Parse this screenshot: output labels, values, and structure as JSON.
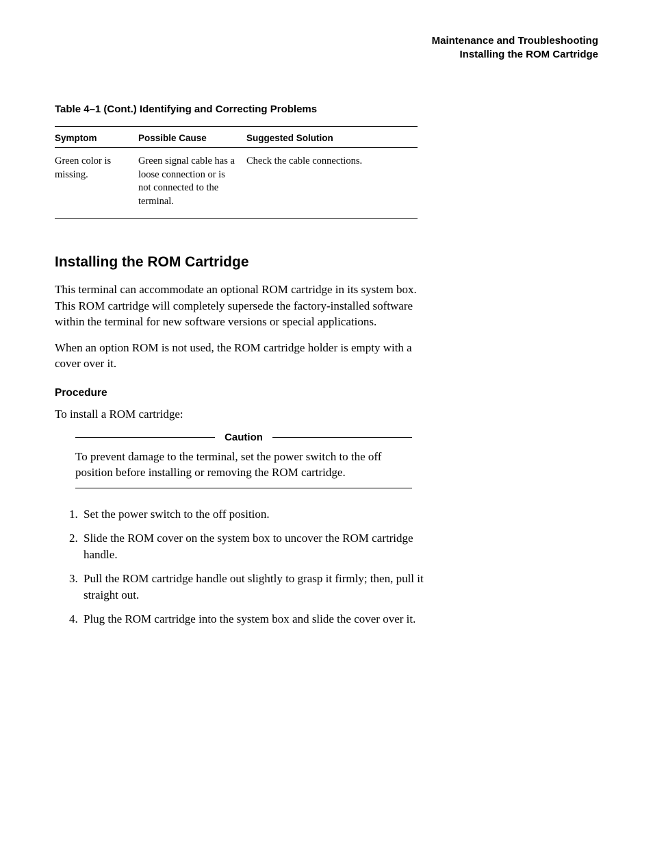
{
  "colors": {
    "text": "#000000",
    "background": "#ffffff",
    "rule": "#000000"
  },
  "running_head": {
    "title": "Maintenance and Troubleshooting",
    "sub": "Installing the ROM Cartridge"
  },
  "table": {
    "caption": "Table 4–1 (Cont.)  Identifying and Correcting Problems",
    "headers": [
      "Symptom",
      "Possible Cause",
      "Suggested Solution"
    ],
    "row": {
      "symptom": "Green color is missing.",
      "cause": "Green signal cable has a loose connection or is not connected to the terminal.",
      "solution": "Check the cable connections."
    }
  },
  "section": {
    "heading": "Installing the ROM Cartridge",
    "p1": "This terminal can accommodate an optional ROM cartridge in its system box. This ROM cartridge will completely supersede the factory-installed software within the terminal for new software versions or special applications.",
    "p2": "When an option ROM is not used, the ROM cartridge holder is empty with a cover over it."
  },
  "procedure": {
    "subhead": "Procedure",
    "lead": "To install a ROM cartridge:",
    "caution_label": "Caution",
    "caution_text": "To prevent damage to the terminal, set the power switch to the off position before installing or removing the ROM cartridge.",
    "steps": [
      "Set the power switch to the off position.",
      "Slide the ROM cover on the system box to uncover the ROM cartridge handle.",
      "Pull the ROM cartridge handle out slightly to grasp it firmly; then, pull it straight out.",
      "Plug the ROM cartridge into the system box and slide the cover over it."
    ]
  }
}
